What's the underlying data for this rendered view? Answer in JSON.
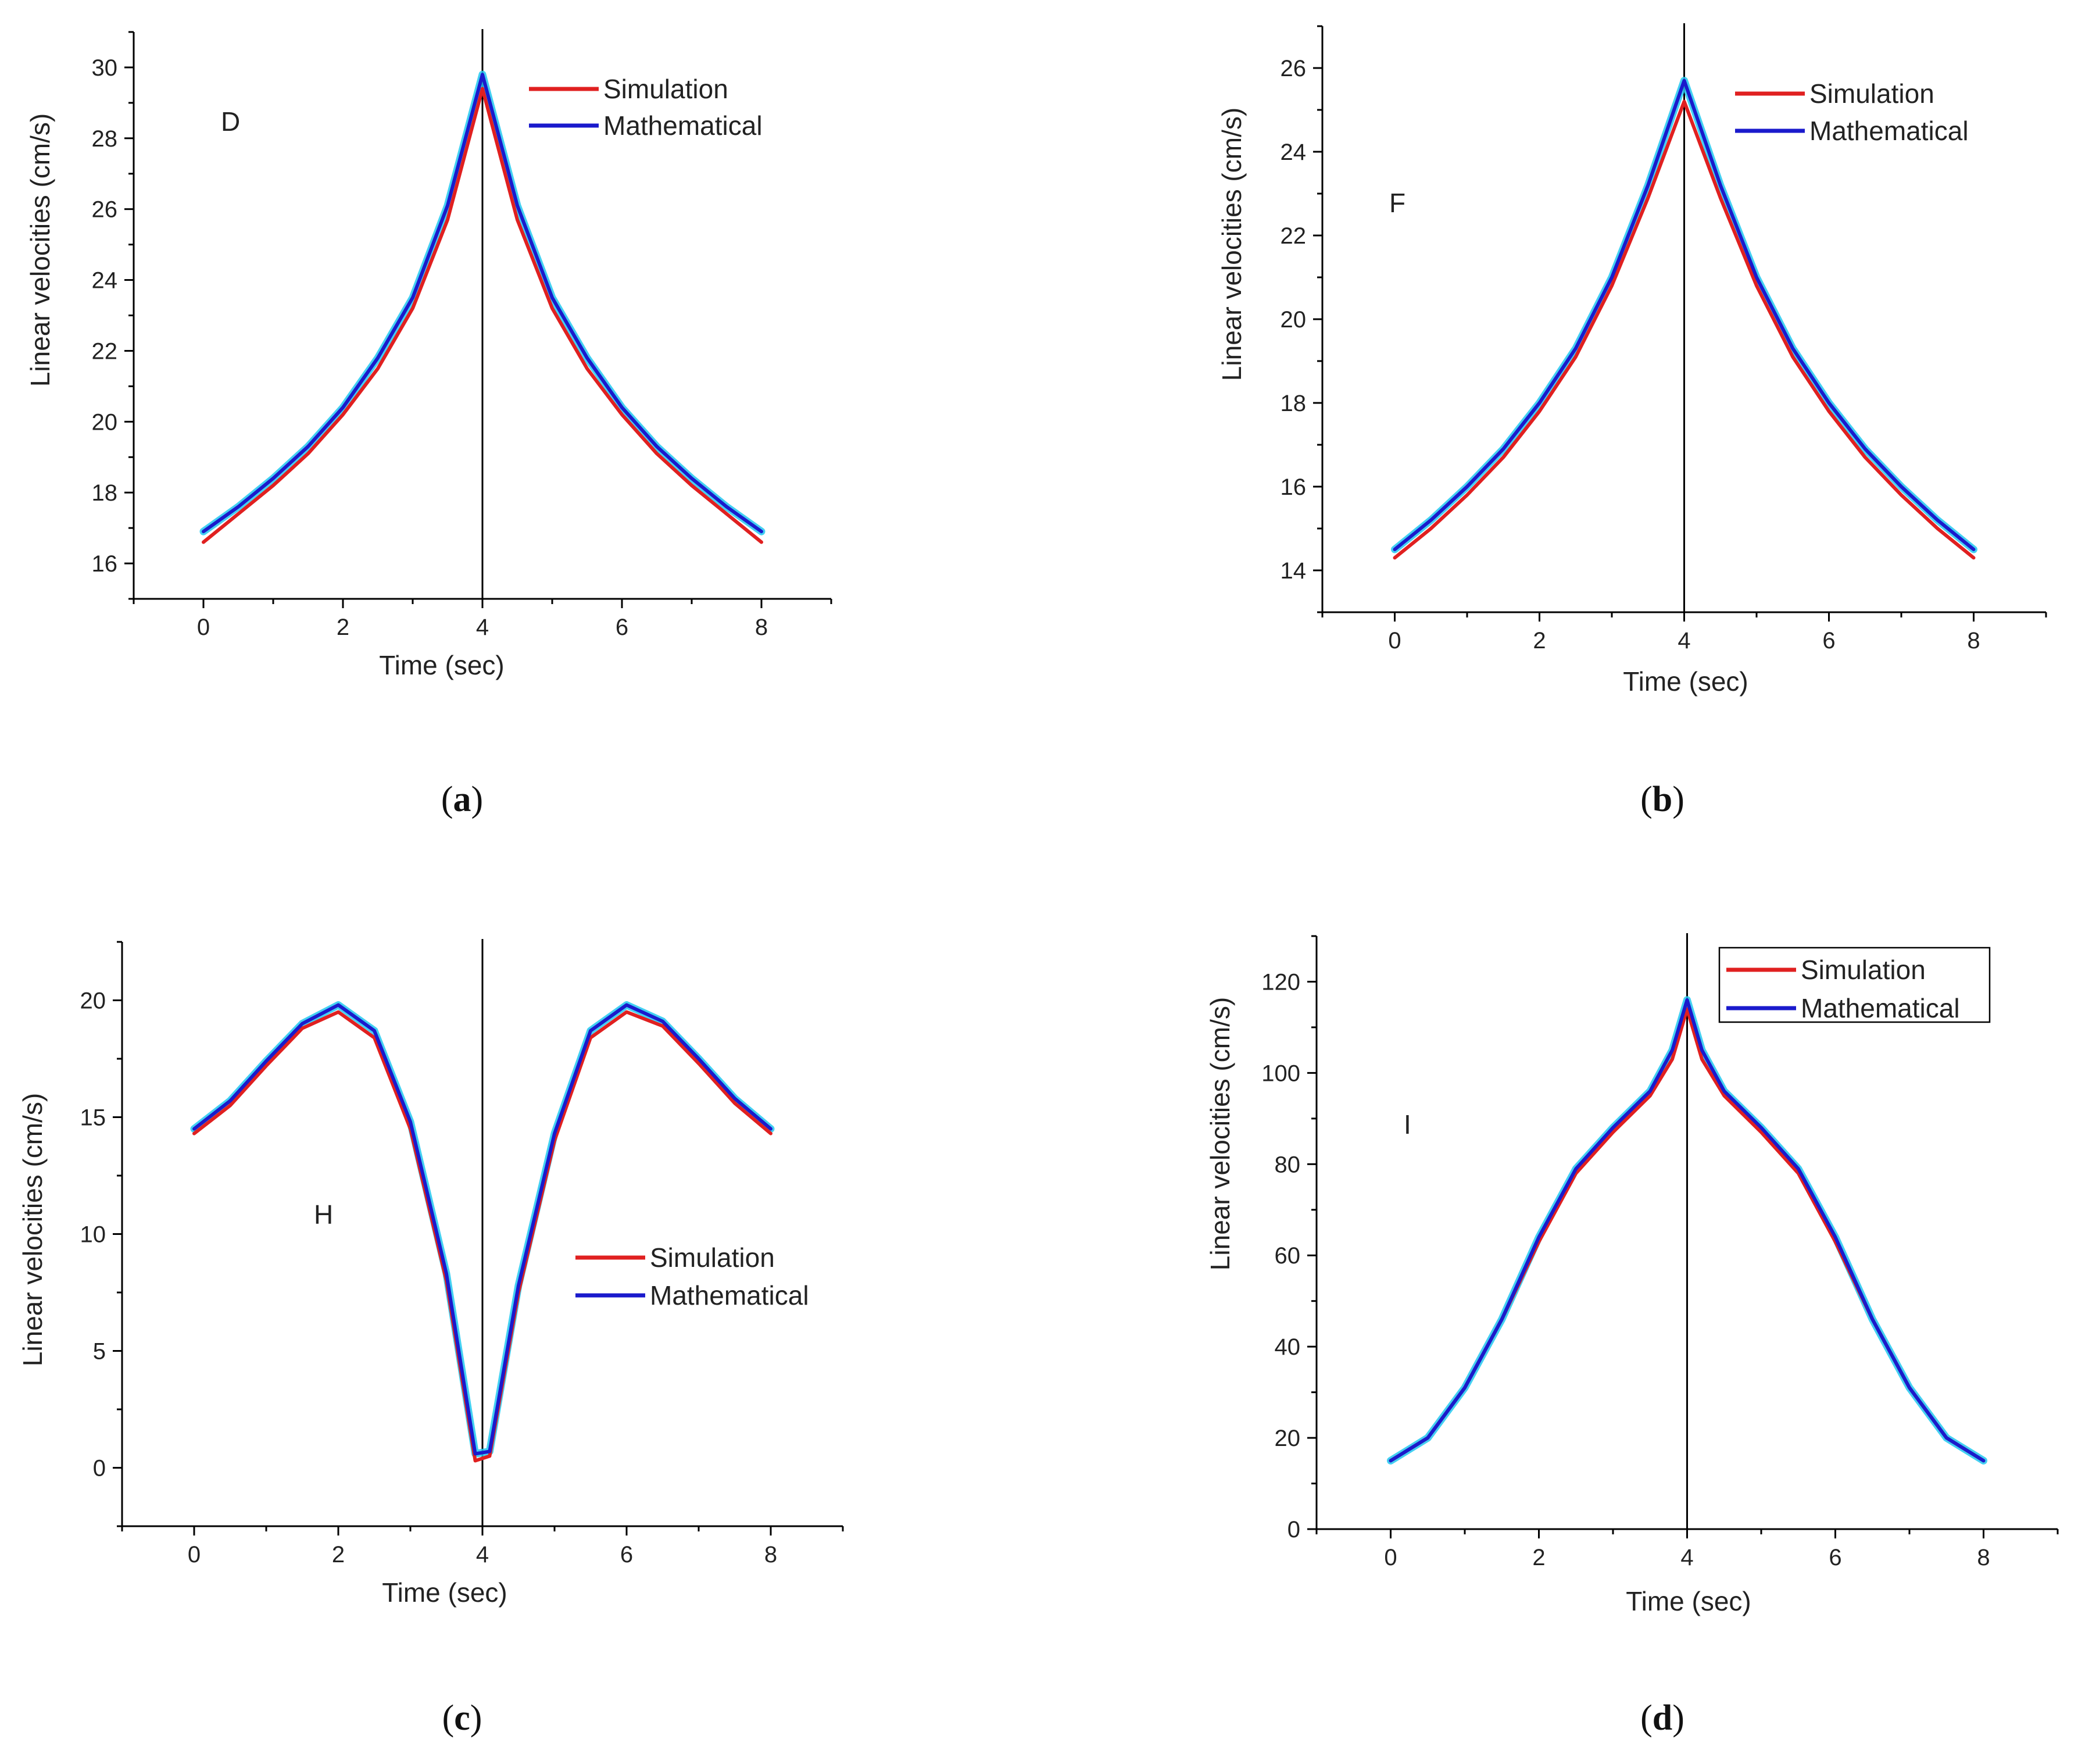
{
  "figure": {
    "panels": [
      {
        "letter": "a",
        "open": "(",
        "close": ")"
      },
      {
        "letter": "b",
        "open": "(",
        "close": ")"
      },
      {
        "letter": "c",
        "open": "(",
        "close": ")"
      },
      {
        "letter": "d",
        "open": "(",
        "close": ")"
      }
    ]
  },
  "colors": {
    "simulation": "#e02020",
    "mathematical": "#1a1acc",
    "halo": "#22c8f0",
    "axis": "#000000"
  },
  "chart_data": [
    {
      "type": "line",
      "panel": "a",
      "annotation": "D",
      "xlabel": "Time (sec)",
      "ylabel": "Linear velocities  (cm/s)",
      "xlim": [
        -1,
        9
      ],
      "ylim": [
        15,
        31
      ],
      "xticks": [
        0,
        2,
        4,
        6,
        8
      ],
      "xtick_labels": [
        "0",
        "2",
        "4",
        "6",
        "8"
      ],
      "yticks": [
        16,
        18,
        20,
        22,
        24,
        26,
        28,
        30
      ],
      "ytick_labels": [
        "16",
        "18",
        "20",
        "22",
        "24",
        "26",
        "28",
        "30"
      ],
      "vline_x": 4,
      "legend": {
        "placement": "top-right",
        "boxed": false
      },
      "series": [
        {
          "name": "Simulation",
          "x": [
            0,
            0.5,
            1,
            1.5,
            2,
            2.5,
            3,
            3.5,
            4,
            4.5,
            5,
            5.5,
            6,
            6.5,
            7,
            7.5,
            8
          ],
          "values": [
            16.6,
            17.4,
            18.2,
            19.1,
            20.2,
            21.5,
            23.2,
            25.7,
            29.4,
            25.7,
            23.2,
            21.5,
            20.2,
            19.1,
            18.2,
            17.4,
            16.6
          ]
        },
        {
          "name": "Mathematical",
          "x": [
            0,
            0.5,
            1,
            1.5,
            2,
            2.5,
            3,
            3.5,
            4,
            4.5,
            5,
            5.5,
            6,
            6.5,
            7,
            7.5,
            8
          ],
          "values": [
            16.9,
            17.6,
            18.4,
            19.3,
            20.4,
            21.8,
            23.5,
            26.1,
            29.8,
            26.1,
            23.5,
            21.8,
            20.4,
            19.3,
            18.4,
            17.6,
            16.9
          ]
        }
      ]
    },
    {
      "type": "line",
      "panel": "b",
      "annotation": "F",
      "xlabel": "Time (sec)",
      "ylabel": "Linear velocities  (cm/s)",
      "xlim": [
        -1,
        9
      ],
      "ylim": [
        13,
        27
      ],
      "xticks": [
        0,
        2,
        4,
        6,
        8
      ],
      "xtick_labels": [
        "0",
        "2",
        "4",
        "6",
        "8"
      ],
      "yticks": [
        14,
        16,
        18,
        20,
        22,
        24,
        26
      ],
      "ytick_labels": [
        "14",
        "16",
        "18",
        "20",
        "22",
        "24",
        "26"
      ],
      "vline_x": 4,
      "legend": {
        "placement": "top-right",
        "boxed": false
      },
      "series": [
        {
          "name": "Simulation",
          "x": [
            0,
            0.5,
            1,
            1.5,
            2,
            2.5,
            3,
            3.5,
            4,
            4.5,
            5,
            5.5,
            6,
            6.5,
            7,
            7.5,
            8
          ],
          "values": [
            14.3,
            15.0,
            15.8,
            16.7,
            17.8,
            19.1,
            20.8,
            22.9,
            25.2,
            22.9,
            20.8,
            19.1,
            17.8,
            16.7,
            15.8,
            15.0,
            14.3
          ]
        },
        {
          "name": "Mathematical",
          "x": [
            0,
            0.5,
            1,
            1.5,
            2,
            2.5,
            3,
            3.5,
            4,
            4.5,
            5,
            5.5,
            6,
            6.5,
            7,
            7.5,
            8
          ],
          "values": [
            14.5,
            15.2,
            16.0,
            16.9,
            18.0,
            19.3,
            21.0,
            23.2,
            25.7,
            23.2,
            21.0,
            19.3,
            18.0,
            16.9,
            16.0,
            15.2,
            14.5
          ]
        }
      ]
    },
    {
      "type": "line",
      "panel": "c",
      "annotation": "H",
      "xlabel": "Time (sec)",
      "ylabel": "Linear velocities  (cm/s)",
      "xlim": [
        -1,
        9
      ],
      "ylim": [
        -2.5,
        22.5
      ],
      "xticks": [
        0,
        2,
        4,
        6,
        8
      ],
      "xtick_labels": [
        "0",
        "2",
        "4",
        "6",
        "8"
      ],
      "yticks": [
        0,
        5,
        10,
        15,
        20
      ],
      "ytick_labels": [
        "0",
        "5",
        "10",
        "15",
        "20"
      ],
      "vline_x": 4,
      "legend": {
        "placement": "center-right",
        "boxed": false
      },
      "series": [
        {
          "name": "Simulation",
          "x": [
            0,
            0.5,
            1,
            1.5,
            2,
            2.5,
            3,
            3.5,
            3.9,
            4.1,
            4.5,
            5,
            5.5,
            6,
            6.5,
            7,
            7.5,
            8
          ],
          "values": [
            14.3,
            15.5,
            17.2,
            18.8,
            19.5,
            18.4,
            14.5,
            8.0,
            0.3,
            0.5,
            7.5,
            14.0,
            18.4,
            19.5,
            18.9,
            17.3,
            15.6,
            14.3
          ]
        },
        {
          "name": "Mathematical",
          "x": [
            0,
            0.5,
            1,
            1.5,
            2,
            2.5,
            3,
            3.5,
            3.9,
            4.1,
            4.5,
            5,
            5.5,
            6,
            6.5,
            7,
            7.5,
            8
          ],
          "values": [
            14.5,
            15.7,
            17.4,
            19.0,
            19.8,
            18.7,
            14.8,
            8.3,
            0.6,
            0.7,
            7.8,
            14.3,
            18.7,
            19.8,
            19.1,
            17.5,
            15.8,
            14.5
          ]
        }
      ]
    },
    {
      "type": "line",
      "panel": "d",
      "annotation": "I",
      "xlabel": "Time (sec)",
      "ylabel": "Linear velocities  (cm/s)",
      "xlim": [
        -1,
        9
      ],
      "ylim": [
        0,
        130
      ],
      "xticks": [
        0,
        2,
        4,
        6,
        8
      ],
      "xtick_labels": [
        "0",
        "2",
        "4",
        "6",
        "8"
      ],
      "yticks": [
        0,
        20,
        40,
        60,
        80,
        100,
        120
      ],
      "ytick_labels": [
        "0",
        "20",
        "40",
        "60",
        "80",
        "100",
        "120"
      ],
      "vline_x": 4,
      "legend": {
        "placement": "top-right",
        "boxed": true
      },
      "series": [
        {
          "name": "Simulation",
          "x": [
            0,
            0.5,
            1,
            1.5,
            2,
            2.5,
            3,
            3.5,
            3.8,
            4,
            4.2,
            4.5,
            5,
            5.5,
            6,
            6.5,
            7,
            7.5,
            8
          ],
          "values": [
            15,
            20,
            31,
            46,
            63,
            78,
            87,
            95,
            103,
            114,
            103,
            95,
            87,
            78,
            63,
            46,
            31,
            20,
            15
          ]
        },
        {
          "name": "Mathematical",
          "x": [
            0,
            0.5,
            1,
            1.5,
            2,
            2.5,
            3,
            3.5,
            3.8,
            4,
            4.2,
            4.5,
            5,
            5.5,
            6,
            6.5,
            7,
            7.5,
            8
          ],
          "values": [
            15,
            20,
            31,
            46,
            64,
            79,
            88,
            96,
            105,
            116,
            105,
            96,
            88,
            79,
            64,
            46,
            31,
            20,
            15
          ]
        }
      ]
    }
  ]
}
